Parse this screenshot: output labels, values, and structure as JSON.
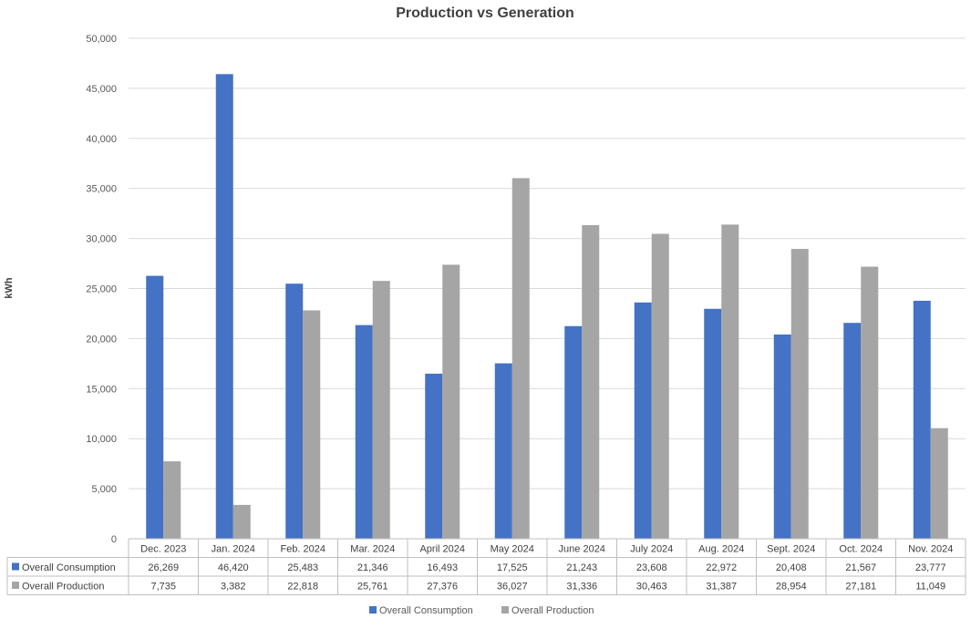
{
  "chart_data": {
    "type": "bar",
    "title": "Production vs Generation",
    "ylabel": "kWh",
    "xlabel": "",
    "ylim": [
      0,
      50000
    ],
    "y_ticks": [
      0,
      5000,
      10000,
      15000,
      20000,
      25000,
      30000,
      35000,
      40000,
      45000,
      50000
    ],
    "y_tick_labels": [
      "0",
      "5,000",
      "10,000",
      "15,000",
      "20,000",
      "25,000",
      "30,000",
      "35,000",
      "40,000",
      "45,000",
      "50,000"
    ],
    "grid": true,
    "legend": "bottom",
    "data_table": true,
    "categories": [
      "Dec. 2023",
      "Jan. 2024",
      "Feb. 2024",
      "Mar. 2024",
      "April 2024",
      "May 2024",
      "June 2024",
      "July  2024",
      "Aug. 2024",
      "Sept. 2024",
      "Oct. 2024",
      "Nov. 2024"
    ],
    "series": [
      {
        "name": "Overall Consumption",
        "color": "#4472C4",
        "values": [
          26269,
          46420,
          25483,
          21346,
          16493,
          17525,
          21243,
          23608,
          22972,
          20408,
          21567,
          23777
        ],
        "value_labels": [
          "26,269",
          "46,420",
          "25,483",
          "21,346",
          "16,493",
          "17,525",
          "21,243",
          "23,608",
          "22,972",
          "20,408",
          "21,567",
          "23,777"
        ]
      },
      {
        "name": "Overall Production",
        "color": "#A5A5A5",
        "values": [
          7735,
          3382,
          22818,
          25761,
          27376,
          36027,
          31336,
          30463,
          31387,
          28954,
          27181,
          11049
        ],
        "value_labels": [
          "7,735",
          "3,382",
          "22,818",
          "25,761",
          "27,376",
          "36,027",
          "31,336",
          "30,463",
          "31,387",
          "28,954",
          "27,181",
          "11,049"
        ]
      }
    ]
  }
}
